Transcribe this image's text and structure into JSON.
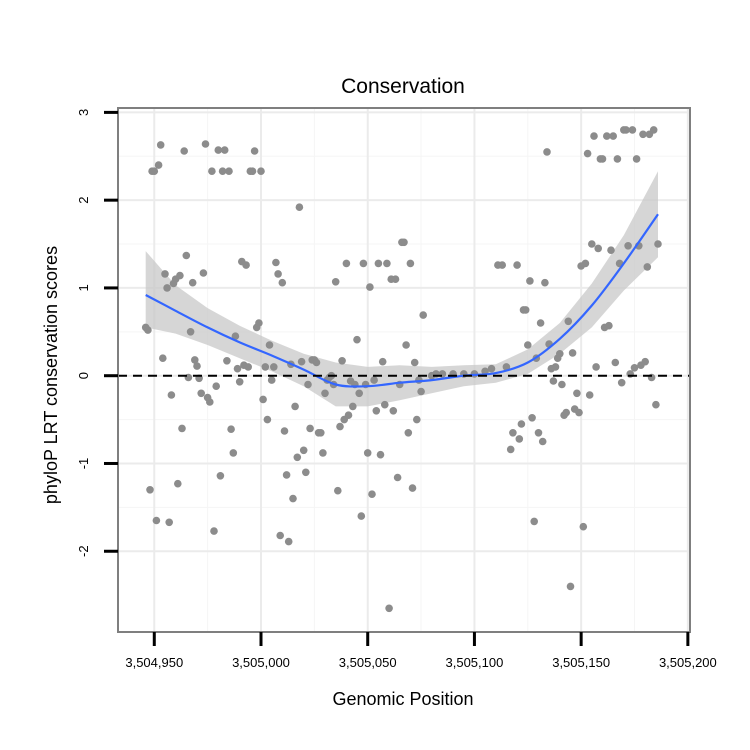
{
  "chart_data": {
    "type": "scatter",
    "title": "Conservation",
    "xlabel": "Genomic Position",
    "ylabel": "phyloP LRT conservation scores",
    "xlim": [
      3504933,
      3505201
    ],
    "ylim": [
      -2.92,
      3.05
    ],
    "x_ticks": [
      3504950,
      3505000,
      3505050,
      3505100,
      3505150,
      3505200
    ],
    "x_tick_labels": [
      "3,504,950",
      "3,505,000",
      "3,505,050",
      "3,505,100",
      "3,505,150",
      "3,505,200"
    ],
    "y_ticks": [
      -2,
      -1,
      0,
      1,
      2,
      3
    ],
    "y_tick_labels": [
      "-2",
      "-1",
      "0",
      "1",
      "2",
      "3"
    ],
    "grid": true,
    "reference_line": {
      "y": 0,
      "style": "dashed",
      "color": "#000000"
    },
    "point_color": "#8c8c8c",
    "smooth_color": "#3366ff",
    "ribbon_color": "#c8c8c8",
    "points": [
      [
        3504946,
        0.55
      ],
      [
        3504947,
        0.52
      ],
      [
        3504948,
        -1.3
      ],
      [
        3504949,
        2.33
      ],
      [
        3504950,
        2.33
      ],
      [
        3504951,
        -1.65
      ],
      [
        3504952,
        2.4
      ],
      [
        3504953,
        2.63
      ],
      [
        3504954,
        0.2
      ],
      [
        3504955,
        1.16
      ],
      [
        3504956,
        1.0
      ],
      [
        3504957,
        -1.67
      ],
      [
        3504958,
        -0.22
      ],
      [
        3504959,
        1.05
      ],
      [
        3504960,
        1.1
      ],
      [
        3504961,
        -1.23
      ],
      [
        3504962,
        1.14
      ],
      [
        3504963,
        -0.6
      ],
      [
        3504964,
        2.56
      ],
      [
        3504965,
        1.37
      ],
      [
        3504966,
        -0.02
      ],
      [
        3504967,
        0.5
      ],
      [
        3504968,
        1.06
      ],
      [
        3504969,
        0.18
      ],
      [
        3504970,
        0.11
      ],
      [
        3504971,
        -0.03
      ],
      [
        3504972,
        -0.2
      ],
      [
        3504973,
        1.17
      ],
      [
        3504974,
        2.64
      ],
      [
        3504975,
        -0.25
      ],
      [
        3504976,
        -0.3
      ],
      [
        3504977,
        2.33
      ],
      [
        3504978,
        -1.77
      ],
      [
        3504979,
        -0.12
      ],
      [
        3504980,
        2.57
      ],
      [
        3504981,
        -1.14
      ],
      [
        3504982,
        2.33
      ],
      [
        3504983,
        2.57
      ],
      [
        3504984,
        0.17
      ],
      [
        3504985,
        2.33
      ],
      [
        3504986,
        -0.61
      ],
      [
        3504987,
        -0.88
      ],
      [
        3504988,
        0.45
      ],
      [
        3504989,
        0.08
      ],
      [
        3504990,
        -0.07
      ],
      [
        3504991,
        1.3
      ],
      [
        3504992,
        0.12
      ],
      [
        3504993,
        1.26
      ],
      [
        3504994,
        0.1
      ],
      [
        3504995,
        2.33
      ],
      [
        3504996,
        2.33
      ],
      [
        3504997,
        2.56
      ],
      [
        3504998,
        0.55
      ],
      [
        3504999,
        0.6
      ],
      [
        3505000,
        2.33
      ],
      [
        3505001,
        -0.27
      ],
      [
        3505002,
        0.1
      ],
      [
        3505003,
        -0.5
      ],
      [
        3505004,
        0.35
      ],
      [
        3505005,
        -0.05
      ],
      [
        3505006,
        0.1
      ],
      [
        3505007,
        1.29
      ],
      [
        3505008,
        1.16
      ],
      [
        3505009,
        -1.82
      ],
      [
        3505010,
        1.06
      ],
      [
        3505011,
        -0.63
      ],
      [
        3505012,
        -1.13
      ],
      [
        3505013,
        -1.89
      ],
      [
        3505014,
        0.13
      ],
      [
        3505015,
        -1.4
      ],
      [
        3505016,
        -0.35
      ],
      [
        3505017,
        -0.93
      ],
      [
        3505018,
        1.92
      ],
      [
        3505019,
        0.16
      ],
      [
        3505020,
        -0.85
      ],
      [
        3505021,
        -1.1
      ],
      [
        3505022,
        -0.1
      ],
      [
        3505023,
        -0.6
      ],
      [
        3505024,
        0.18
      ],
      [
        3505025,
        0.18
      ],
      [
        3505026,
        0.15
      ],
      [
        3505027,
        -0.65
      ],
      [
        3505028,
        -0.65
      ],
      [
        3505029,
        -0.88
      ],
      [
        3505030,
        -0.2
      ],
      [
        3505031,
        -0.05
      ],
      [
        3505032,
        -0.02
      ],
      [
        3505033,
        0.0
      ],
      [
        3505034,
        -0.1
      ],
      [
        3505035,
        1.07
      ],
      [
        3505036,
        -1.31
      ],
      [
        3505037,
        -0.58
      ],
      [
        3505038,
        0.17
      ],
      [
        3505039,
        -0.5
      ],
      [
        3505040,
        1.28
      ],
      [
        3505041,
        -0.45
      ],
      [
        3505042,
        -0.06
      ],
      [
        3505043,
        -0.35
      ],
      [
        3505044,
        -0.1
      ],
      [
        3505045,
        0.41
      ],
      [
        3505046,
        -0.2
      ],
      [
        3505047,
        -1.6
      ],
      [
        3505048,
        1.28
      ],
      [
        3505049,
        -0.1
      ],
      [
        3505050,
        -0.88
      ],
      [
        3505051,
        1.01
      ],
      [
        3505052,
        -1.35
      ],
      [
        3505053,
        -0.05
      ],
      [
        3505054,
        -0.4
      ],
      [
        3505055,
        1.28
      ],
      [
        3505056,
        -0.9
      ],
      [
        3505057,
        0.16
      ],
      [
        3505058,
        -0.33
      ],
      [
        3505059,
        1.28
      ],
      [
        3505060,
        -2.65
      ],
      [
        3505061,
        1.1
      ],
      [
        3505062,
        -0.4
      ],
      [
        3505063,
        1.1
      ],
      [
        3505064,
        -1.16
      ],
      [
        3505065,
        -0.1
      ],
      [
        3505066,
        1.52
      ],
      [
        3505067,
        1.52
      ],
      [
        3505068,
        0.35
      ],
      [
        3505069,
        -0.65
      ],
      [
        3505070,
        1.28
      ],
      [
        3505071,
        -1.28
      ],
      [
        3505072,
        0.15
      ],
      [
        3505073,
        -0.5
      ],
      [
        3505074,
        -0.05
      ],
      [
        3505075,
        -0.18
      ],
      [
        3505076,
        0.69
      ],
      [
        3505080,
        0.0
      ],
      [
        3505082,
        0.02
      ],
      [
        3505085,
        0.02
      ],
      [
        3505090,
        0.02
      ],
      [
        3505095,
        0.02
      ],
      [
        3505100,
        0.02
      ],
      [
        3505105,
        0.05
      ],
      [
        3505108,
        0.08
      ],
      [
        3505111,
        1.26
      ],
      [
        3505113,
        1.26
      ],
      [
        3505115,
        0.1
      ],
      [
        3505117,
        -0.84
      ],
      [
        3505118,
        -0.65
      ],
      [
        3505120,
        1.26
      ],
      [
        3505121,
        -0.72
      ],
      [
        3505122,
        -0.55
      ],
      [
        3505123,
        0.75
      ],
      [
        3505124,
        0.75
      ],
      [
        3505125,
        0.35
      ],
      [
        3505126,
        1.08
      ],
      [
        3505127,
        -0.48
      ],
      [
        3505128,
        -1.66
      ],
      [
        3505129,
        0.2
      ],
      [
        3505130,
        -0.65
      ],
      [
        3505131,
        0.6
      ],
      [
        3505132,
        -0.75
      ],
      [
        3505133,
        1.06
      ],
      [
        3505134,
        2.55
      ],
      [
        3505135,
        0.36
      ],
      [
        3505136,
        0.08
      ],
      [
        3505137,
        -0.06
      ],
      [
        3505138,
        0.1
      ],
      [
        3505139,
        0.2
      ],
      [
        3505140,
        0.25
      ],
      [
        3505141,
        -0.1
      ],
      [
        3505142,
        -0.45
      ],
      [
        3505143,
        -0.42
      ],
      [
        3505144,
        0.62
      ],
      [
        3505145,
        -2.4
      ],
      [
        3505146,
        0.26
      ],
      [
        3505147,
        -0.38
      ],
      [
        3505148,
        -0.2
      ],
      [
        3505149,
        -0.42
      ],
      [
        3505150,
        1.25
      ],
      [
        3505151,
        -1.72
      ],
      [
        3505152,
        1.28
      ],
      [
        3505153,
        2.53
      ],
      [
        3505154,
        -0.22
      ],
      [
        3505155,
        1.5
      ],
      [
        3505156,
        2.73
      ],
      [
        3505157,
        0.1
      ],
      [
        3505158,
        1.45
      ],
      [
        3505159,
        2.47
      ],
      [
        3505160,
        2.47
      ],
      [
        3505161,
        0.55
      ],
      [
        3505162,
        2.73
      ],
      [
        3505163,
        0.57
      ],
      [
        3505164,
        1.43
      ],
      [
        3505165,
        2.73
      ],
      [
        3505166,
        0.15
      ],
      [
        3505167,
        2.47
      ],
      [
        3505168,
        1.28
      ],
      [
        3505169,
        -0.08
      ],
      [
        3505170,
        2.8
      ],
      [
        3505171,
        2.8
      ],
      [
        3505172,
        1.48
      ],
      [
        3505173,
        0.02
      ],
      [
        3505174,
        2.8
      ],
      [
        3505175,
        0.09
      ],
      [
        3505176,
        2.47
      ],
      [
        3505177,
        1.48
      ],
      [
        3505178,
        0.12
      ],
      [
        3505179,
        2.75
      ],
      [
        3505180,
        0.16
      ],
      [
        3505181,
        1.24
      ],
      [
        3505182,
        2.75
      ],
      [
        3505183,
        -0.02
      ],
      [
        3505184,
        2.8
      ],
      [
        3505185,
        -0.33
      ],
      [
        3505186,
        1.5
      ]
    ],
    "smooth": {
      "x": [
        3504946,
        3504960,
        3504975,
        3504990,
        3505005,
        3505020,
        3505035,
        3505050,
        3505065,
        3505080,
        3505095,
        3505110,
        3505125,
        3505140,
        3505155,
        3505170,
        3505186
      ],
      "y": [
        0.92,
        0.74,
        0.55,
        0.38,
        0.23,
        0.07,
        -0.1,
        -0.12,
        -0.08,
        -0.05,
        0.0,
        0.03,
        0.15,
        0.42,
        0.8,
        1.28,
        1.84
      ],
      "lower": [
        0.55,
        0.48,
        0.35,
        0.2,
        0.05,
        -0.12,
        -0.35,
        -0.35,
        -0.28,
        -0.2,
        -0.12,
        -0.08,
        0.02,
        0.25,
        0.55,
        0.97,
        1.35
      ],
      "upper": [
        1.42,
        1.03,
        0.77,
        0.57,
        0.4,
        0.25,
        0.15,
        0.1,
        0.12,
        0.1,
        0.12,
        0.13,
        0.3,
        0.6,
        1.05,
        1.6,
        2.33
      ]
    }
  }
}
